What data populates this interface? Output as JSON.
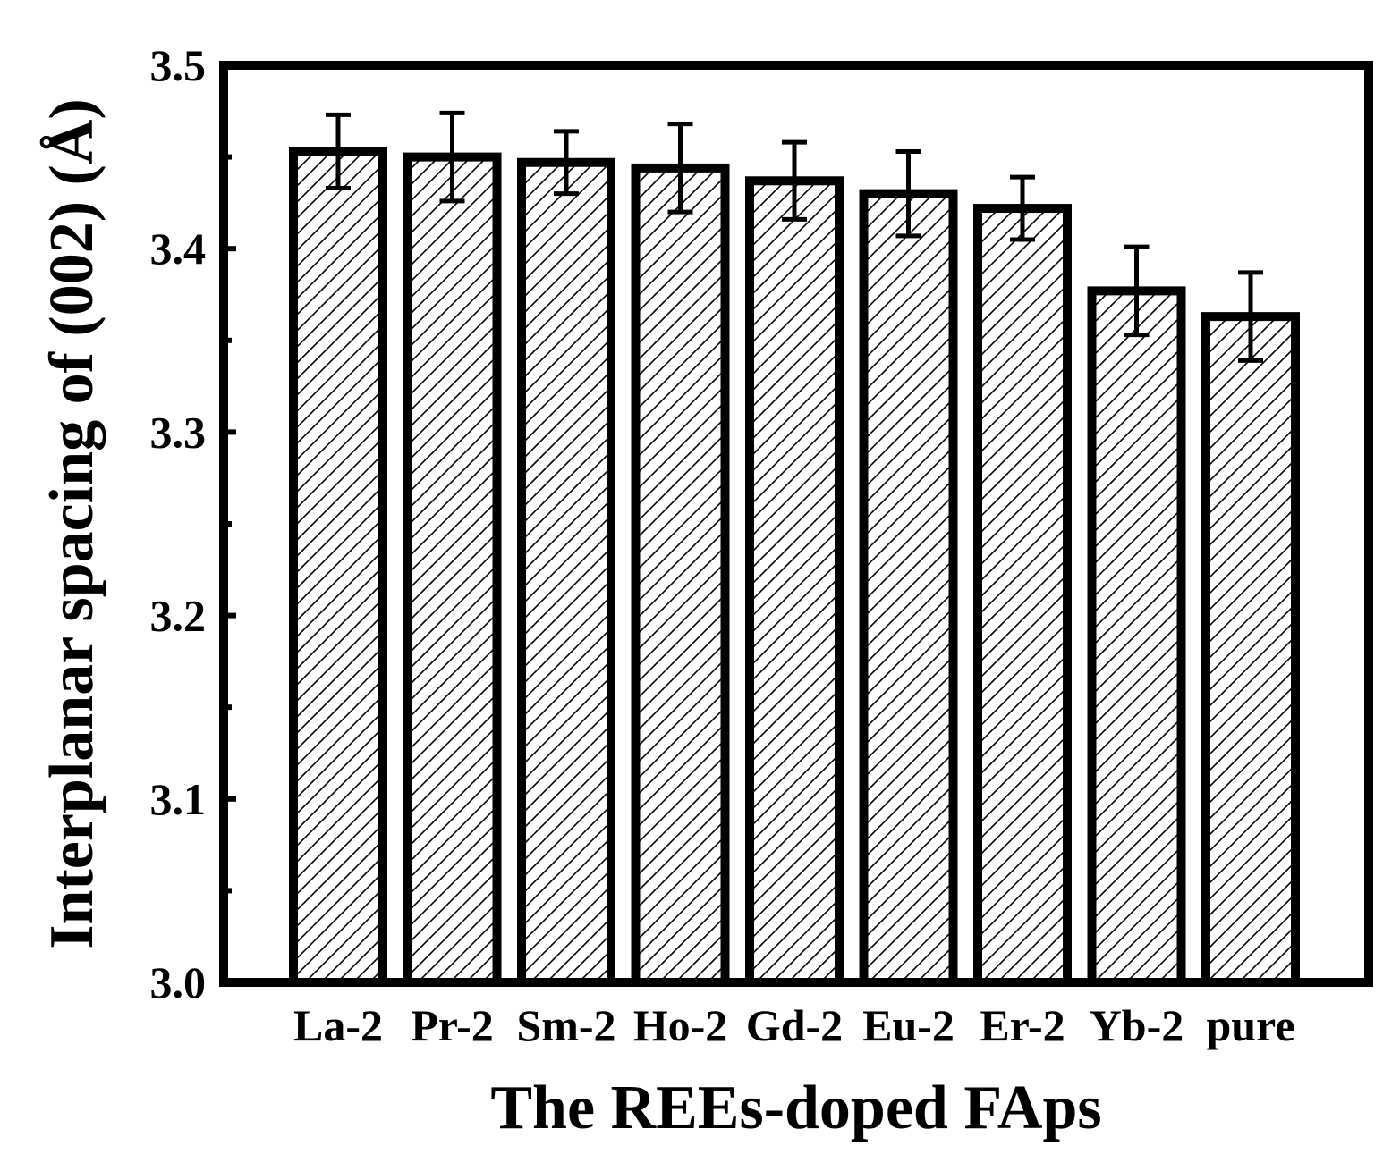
{
  "chart_data": {
    "type": "bar",
    "categories": [
      "La-2",
      "Pr-2",
      "Sm-2",
      "Ho-2",
      "Gd-2",
      "Eu-2",
      "Er-2",
      "Yb-2",
      "pure"
    ],
    "values": [
      3.453,
      3.45,
      3.447,
      3.444,
      3.437,
      3.43,
      3.422,
      3.377,
      3.363
    ],
    "errors": [
      0.02,
      0.024,
      0.017,
      0.024,
      0.021,
      0.023,
      0.017,
      0.024,
      0.024
    ],
    "xlabel": "The REEs-doped FAps",
    "ylabel": "Interplanar spacing of (002) (Å)",
    "ylim": [
      3.0,
      3.5
    ],
    "yticks": [
      "3.0",
      "3.1",
      "3.2",
      "3.3",
      "3.4",
      "3.5"
    ],
    "bar_fill": "hatched",
    "bar_edge_color": "#000000",
    "grid": false
  }
}
